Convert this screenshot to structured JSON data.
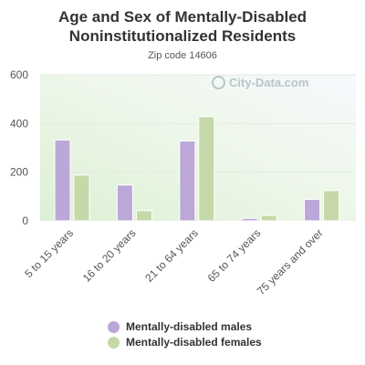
{
  "chart_data": {
    "type": "bar",
    "title": "Age and Sex of Mentally-Disabled Noninstitutionalized Residents",
    "subtitle": "Zip code 14606",
    "categories": [
      "5 to 15 years",
      "16 to 20 years",
      "21 to 64 years",
      "65 to 74 years",
      "75 years and over"
    ],
    "series": [
      {
        "name": "Mentally-disabled males",
        "color": "#bca8d8",
        "values": [
          332,
          147,
          328,
          10,
          88
        ]
      },
      {
        "name": "Mentally-disabled females",
        "color": "#c5d9a8",
        "values": [
          188,
          42,
          428,
          22,
          124
        ]
      }
    ],
    "ylim": [
      0,
      600
    ],
    "yticks": [
      "0",
      "200",
      "400",
      "600"
    ],
    "grid": true,
    "legend": "bottom",
    "watermark": "City-Data.com"
  }
}
